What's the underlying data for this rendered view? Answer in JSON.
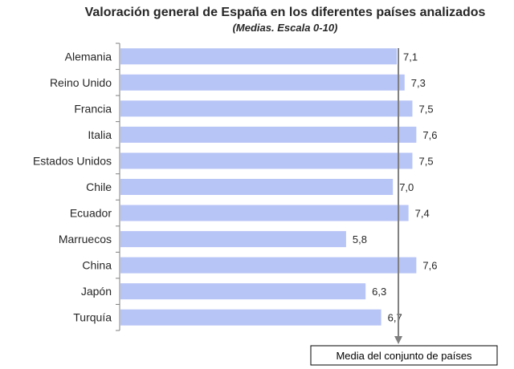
{
  "chart_data": {
    "type": "bar",
    "orientation": "horizontal",
    "title": "Valoración general de España en los diferentes países analizados",
    "subtitle": "(Medias. Escala 0-10)",
    "categories": [
      "Alemania",
      "Reino Unido",
      "Francia",
      "Italia",
      "Estados Unidos",
      "Chile",
      "Ecuador",
      "Marruecos",
      "China",
      "Japón",
      "Turquía"
    ],
    "values": [
      7.1,
      7.3,
      7.5,
      7.6,
      7.5,
      7.0,
      7.4,
      5.8,
      7.6,
      6.3,
      6.7
    ],
    "value_labels": [
      "7,1",
      "7,3",
      "7,5",
      "7,6",
      "7,5",
      "7,0",
      "7,4",
      "5,8",
      "7,6",
      "6,3",
      "6,7"
    ],
    "xlim": [
      0,
      10
    ],
    "grid": false,
    "legend": "none",
    "bar_color": "#b7c4f6",
    "mean_line": {
      "value": 7.1,
      "label": "Media del conjunto de países",
      "color": "#7f7f7f"
    }
  }
}
